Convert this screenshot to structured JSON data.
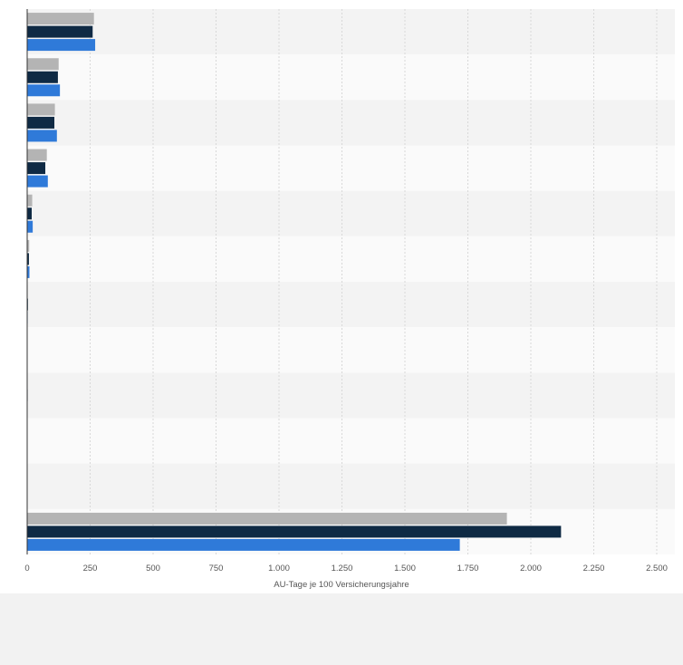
{
  "chart_data": {
    "type": "bar",
    "orientation": "horizontal",
    "categories": [
      "",
      "",
      "",
      "",
      "",
      "",
      "",
      "",
      "",
      "",
      "",
      ""
    ],
    "series": [
      {
        "values": [
          265,
          125,
          110,
          78,
          20,
          8,
          2,
          0,
          0,
          0,
          0,
          1905
        ],
        "color": "#b4b4b4"
      },
      {
        "values": [
          260,
          122,
          108,
          72,
          18,
          7,
          3,
          1,
          2,
          0,
          0,
          2120
        ],
        "color": "#0f2a44"
      },
      {
        "values": [
          270,
          130,
          118,
          82,
          22,
          9,
          2,
          0,
          0,
          0,
          0,
          1718
        ],
        "color": "#2f7ad9"
      }
    ],
    "xlabel": "AU-Tage je 100 Versicherungsjahre",
    "xlim": [
      0,
      2500
    ],
    "xticks": [
      {
        "value": 0,
        "label": "0"
      },
      {
        "value": 250,
        "label": "250"
      },
      {
        "value": 500,
        "label": "500"
      },
      {
        "value": 750,
        "label": "750"
      },
      {
        "value": 1000,
        "label": "1.000"
      },
      {
        "value": 1250,
        "label": "1.250"
      },
      {
        "value": 1500,
        "label": "1.500"
      },
      {
        "value": 1750,
        "label": "1.750"
      },
      {
        "value": 2000,
        "label": "2.000"
      },
      {
        "value": 2250,
        "label": "2.250"
      },
      {
        "value": 2500,
        "label": "2.500"
      }
    ],
    "grid": true,
    "legend": "none"
  }
}
